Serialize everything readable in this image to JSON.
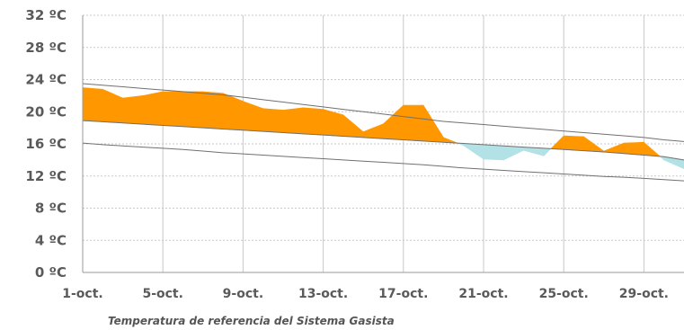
{
  "chart_data": {
    "type": "area",
    "caption": "Temperatura de referencia del Sistema Gasista",
    "x": [
      1,
      2,
      3,
      4,
      5,
      6,
      7,
      8,
      9,
      10,
      11,
      12,
      13,
      14,
      15,
      16,
      17,
      18,
      19,
      20,
      21,
      22,
      23,
      24,
      25,
      26,
      27,
      28,
      29,
      30,
      31
    ],
    "x_tick_values": [
      1,
      5,
      9,
      13,
      17,
      21,
      25,
      29
    ],
    "x_tick_labels": [
      "1-oct.",
      "5-oct.",
      "9-oct.",
      "13-oct.",
      "17-oct.",
      "21-oct.",
      "25-oct.",
      "29-oct."
    ],
    "y_ticks": [
      0,
      4,
      8,
      12,
      16,
      20,
      24,
      28,
      32
    ],
    "y_tick_labels": [
      "0 ºC",
      "4 ºC",
      "8 ºC",
      "12 ºC",
      "16 ºC",
      "20 ºC",
      "24 ºC",
      "28 ºC",
      "32 ºC"
    ],
    "ylim": [
      0,
      32
    ],
    "xlim": [
      1,
      31
    ],
    "grid": true,
    "series": [
      {
        "role": "observed",
        "values": [
          23.0,
          22.8,
          21.7,
          22.0,
          22.5,
          22.5,
          22.5,
          22.3,
          21.3,
          20.4,
          20.2,
          20.5,
          20.3,
          19.6,
          17.5,
          18.5,
          20.8,
          20.8,
          16.8,
          15.8,
          14.1,
          14.0,
          15.2,
          14.5,
          17.0,
          16.9,
          15.1,
          16.1,
          16.2,
          14.0,
          12.9
        ]
      },
      {
        "role": "upper-band",
        "values": [
          23.5,
          23.3,
          23.1,
          22.9,
          22.7,
          22.5,
          22.3,
          22.1,
          21.8,
          21.5,
          21.2,
          20.9,
          20.6,
          20.3,
          20.0,
          19.7,
          19.4,
          19.1,
          18.8,
          18.6,
          18.4,
          18.2,
          18.0,
          17.8,
          17.6,
          17.4,
          17.2,
          17.0,
          16.8,
          16.5,
          16.3
        ]
      },
      {
        "role": "reference",
        "values": [
          18.9,
          18.75,
          18.6,
          18.45,
          18.3,
          18.15,
          18.0,
          17.85,
          17.7,
          17.55,
          17.4,
          17.25,
          17.1,
          16.95,
          16.8,
          16.65,
          16.5,
          16.35,
          16.2,
          16.05,
          15.9,
          15.75,
          15.6,
          15.45,
          15.3,
          15.15,
          15.0,
          14.8,
          14.6,
          14.4,
          14.0
        ]
      },
      {
        "role": "lower-band",
        "values": [
          16.1,
          15.9,
          15.75,
          15.6,
          15.45,
          15.3,
          15.1,
          14.9,
          14.75,
          14.6,
          14.45,
          14.3,
          14.15,
          14.0,
          13.85,
          13.7,
          13.55,
          13.4,
          13.2,
          13.0,
          12.85,
          12.7,
          12.55,
          12.4,
          12.25,
          12.1,
          11.95,
          11.85,
          11.7,
          11.55,
          11.4
        ]
      }
    ],
    "colors": {
      "above_reference_fill": "#ff9800",
      "below_reference_fill": "#b2e1e6",
      "band_line": "#707070",
      "grid_line": "#c8c8c8",
      "tick_text": "#5a5a5a"
    }
  }
}
